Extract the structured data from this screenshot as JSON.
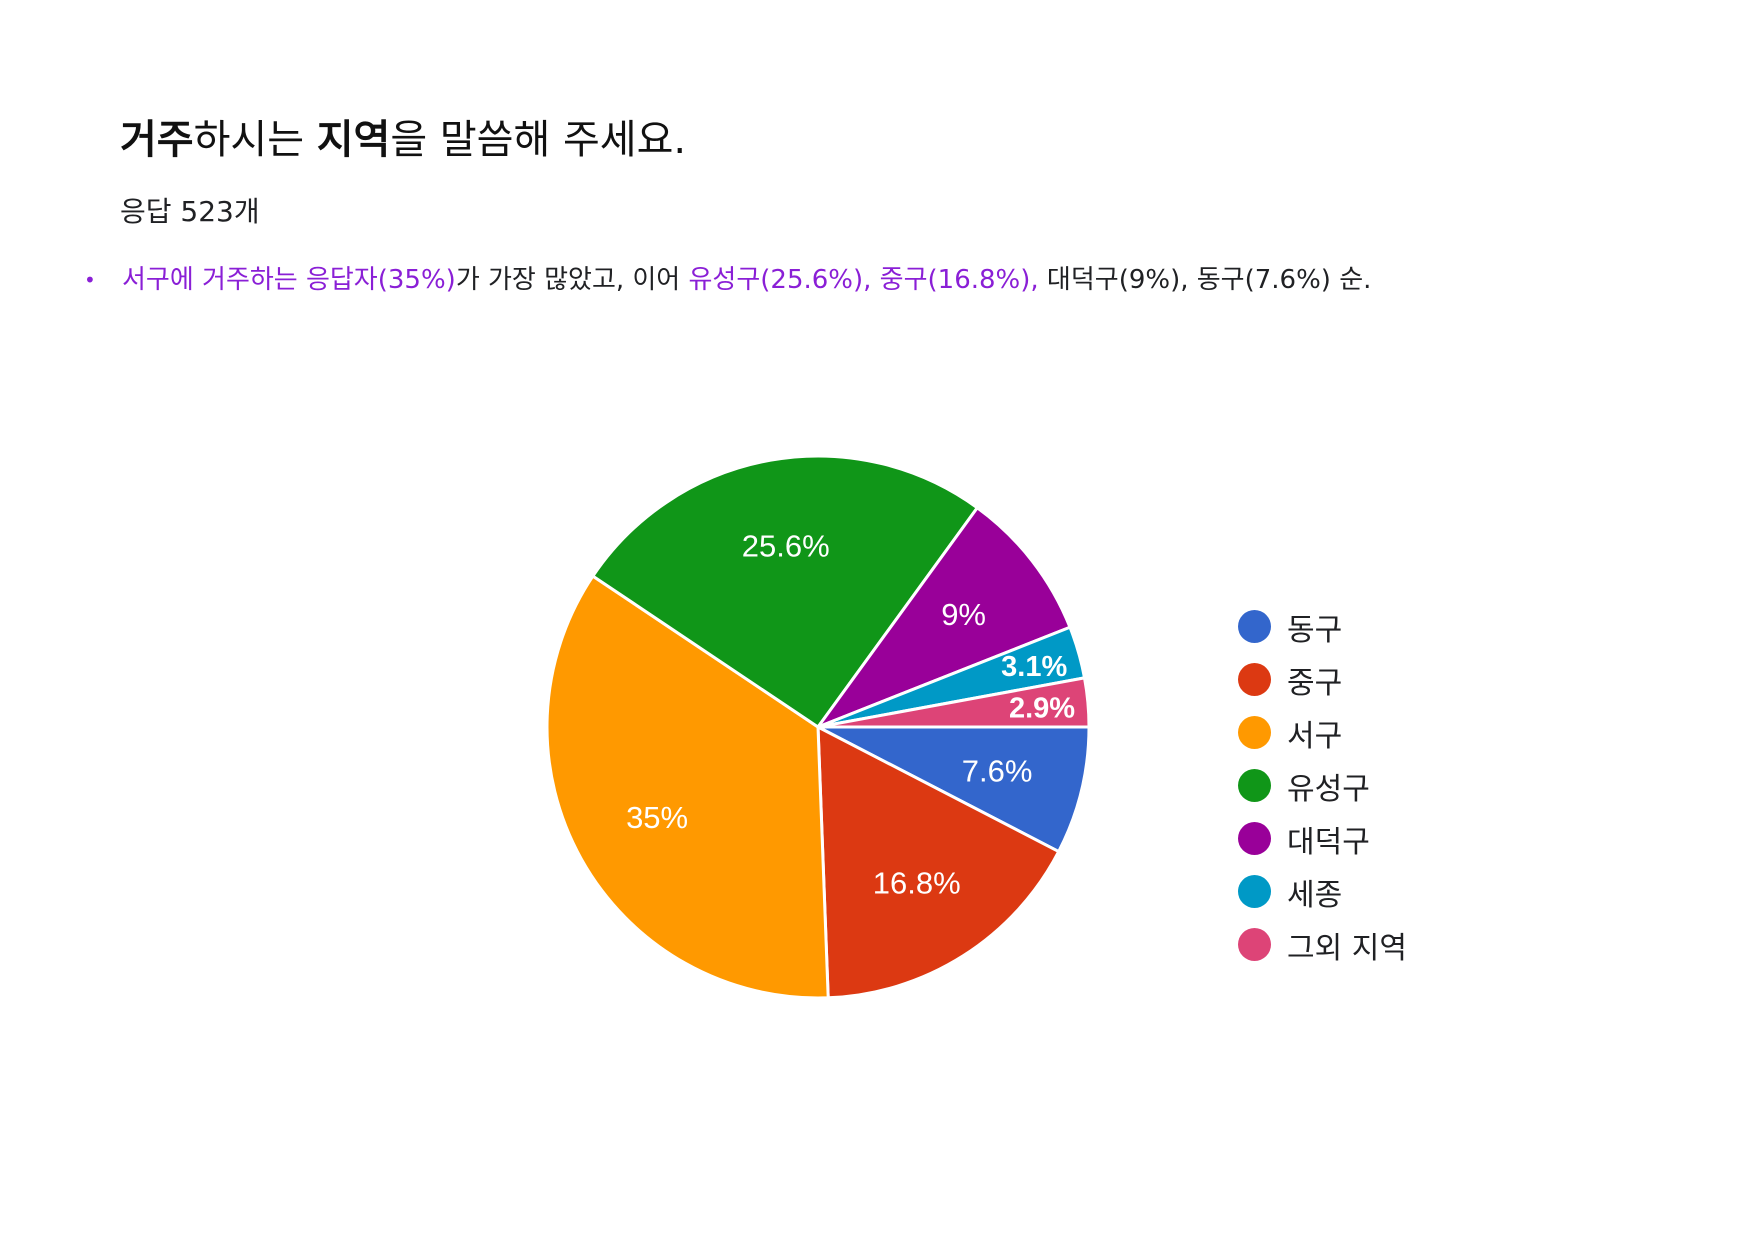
{
  "header": {
    "title_bold1": "거주",
    "title_plain1": "하시는 ",
    "title_bold2": "지역",
    "title_plain2": "을 말씀해 주세요.",
    "subtitle": "응답 523개"
  },
  "summary": {
    "bullet": "•",
    "hl1": "서구에 거주하는 응답자(35%)",
    "plain1": "가 가장 많았고, 이어 ",
    "hl2": "유성구(25.6%), 중구(16.8%),",
    "plain2": " 대덕구(9%), 동구(7.6%) 순.",
    "highlight_color": "#8a1fd6"
  },
  "chart_data": {
    "type": "pie",
    "title": "",
    "legend_position": "right",
    "slices": [
      {
        "label": "동구",
        "value": 7.6,
        "display": "7.6%",
        "color": "#3366cc"
      },
      {
        "label": "중구",
        "value": 16.8,
        "display": "16.8%",
        "color": "#dc3912"
      },
      {
        "label": "서구",
        "value": 35,
        "display": "35%",
        "color": "#ff9900"
      },
      {
        "label": "유성구",
        "value": 25.6,
        "display": "25.6%",
        "color": "#109618"
      },
      {
        "label": "대덕구",
        "value": 9,
        "display": "9%",
        "color": "#990099"
      },
      {
        "label": "세종",
        "value": 3.1,
        "display": "3.1%",
        "color": "#0099c6"
      },
      {
        "label": "그외 지역",
        "value": 2.9,
        "display": "2.9%",
        "color": "#dd4477"
      }
    ]
  }
}
